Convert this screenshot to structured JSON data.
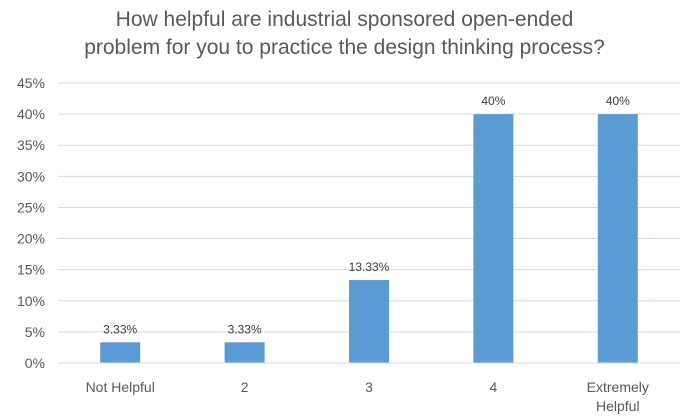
{
  "chart_data": {
    "type": "bar",
    "title_lines": [
      "How helpful are industrial sponsored open-ended",
      "problem for you to practice the design thinking process?"
    ],
    "categories": [
      [
        "Not Helpful"
      ],
      [
        "2"
      ],
      [
        "3"
      ],
      [
        "4"
      ],
      [
        "Extremely",
        "Helpful"
      ]
    ],
    "values": [
      3.33,
      3.33,
      13.33,
      40,
      40
    ],
    "data_labels": [
      "3.33%",
      "3.33%",
      "13.33%",
      "40%",
      "40%"
    ],
    "y_ticks": [
      0,
      5,
      10,
      15,
      20,
      25,
      30,
      35,
      40,
      45
    ],
    "y_tick_suffix": "%",
    "ylim": [
      0,
      45
    ],
    "grid": true,
    "legend": "none",
    "bar_color": "#5b9bd5",
    "grid_color": "#d9d9d9"
  }
}
